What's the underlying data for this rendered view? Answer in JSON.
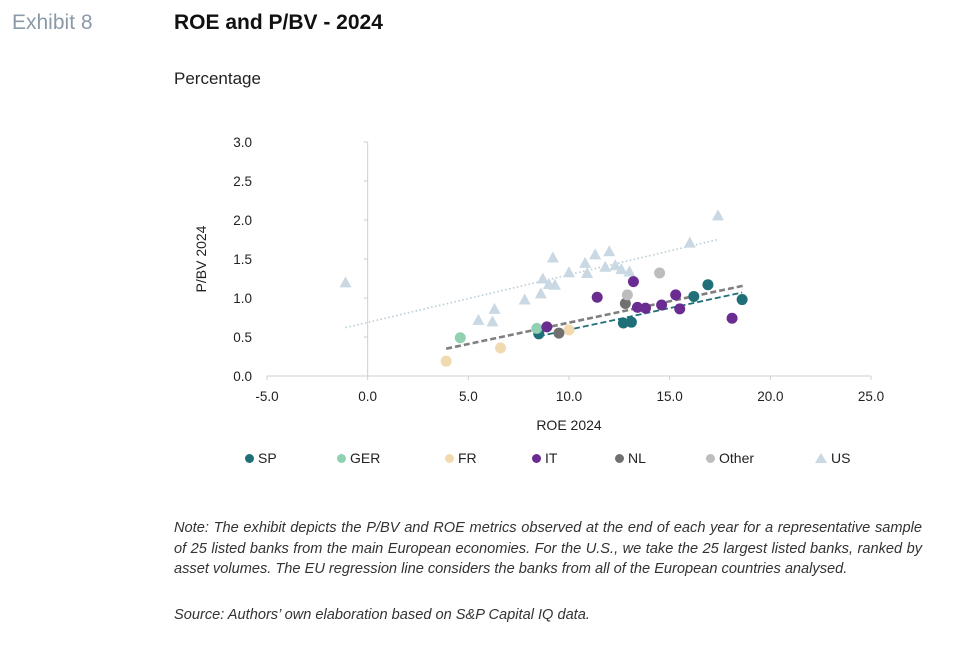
{
  "header": {
    "exhibit": "Exhibit 8",
    "title": "ROE and P/BV - 2024",
    "subtitle": "Percentage"
  },
  "footer": {
    "note": "Note: The exhibit depicts the P/BV and ROE metrics observed at the end of each year for a representative sample of 25 listed banks from the main European economies. For the U.S., we take the 25 largest listed banks, ranked by asset volumes. The EU regression line considers the banks from all of the European countries analysed.",
    "source": "Source: Authors’ own elaboration based on S&P Capital IQ data."
  },
  "chart_data": {
    "type": "scatter",
    "xlabel": "ROE 2024",
    "ylabel": "P/BV 2024",
    "xlim": [
      -5,
      25
    ],
    "ylim": [
      0,
      3
    ],
    "xticks": [
      "-5.0",
      "0.0",
      "5.0",
      "10.0",
      "15.0",
      "20.0",
      "25.0"
    ],
    "yticks": [
      "0.0",
      "0.5",
      "1.0",
      "1.5",
      "2.0",
      "2.5",
      "3.0"
    ],
    "legend_position": "bottom",
    "series": [
      {
        "name": "SP",
        "marker": "circle",
        "color": "#1e6f78",
        "points": [
          [
            8.5,
            0.54
          ],
          [
            12.7,
            0.68
          ],
          [
            13.1,
            0.69
          ],
          [
            16.2,
            1.02
          ],
          [
            16.9,
            1.17
          ],
          [
            18.6,
            0.98
          ]
        ]
      },
      {
        "name": "GER",
        "marker": "circle",
        "color": "#8fd1b0",
        "points": [
          [
            4.6,
            0.49
          ],
          [
            8.4,
            0.61
          ]
        ]
      },
      {
        "name": "FR",
        "marker": "circle",
        "color": "#f1dab0",
        "points": [
          [
            3.9,
            0.19
          ],
          [
            6.6,
            0.36
          ],
          [
            10.0,
            0.59
          ]
        ]
      },
      {
        "name": "IT",
        "marker": "circle",
        "color": "#6a2c91",
        "points": [
          [
            8.9,
            0.63
          ],
          [
            11.4,
            1.01
          ],
          [
            13.2,
            1.21
          ],
          [
            13.4,
            0.88
          ],
          [
            13.8,
            0.87
          ],
          [
            14.6,
            0.91
          ],
          [
            15.3,
            1.04
          ],
          [
            15.5,
            0.86
          ],
          [
            18.1,
            0.74
          ]
        ]
      },
      {
        "name": "NL",
        "marker": "circle",
        "color": "#707070",
        "points": [
          [
            9.5,
            0.55
          ],
          [
            12.8,
            0.93
          ]
        ]
      },
      {
        "name": "Other",
        "marker": "circle",
        "color": "#bdbdbd",
        "points": [
          [
            12.9,
            1.04
          ],
          [
            14.5,
            1.32
          ]
        ]
      },
      {
        "name": "US",
        "marker": "triangle",
        "color": "#c9d8e2",
        "points": [
          [
            -1.1,
            1.2
          ],
          [
            5.5,
            0.72
          ],
          [
            6.2,
            0.7
          ],
          [
            6.3,
            0.86
          ],
          [
            7.8,
            0.98
          ],
          [
            8.6,
            1.06
          ],
          [
            8.7,
            1.25
          ],
          [
            9.0,
            1.18
          ],
          [
            9.2,
            1.52
          ],
          [
            9.3,
            1.17
          ],
          [
            10.0,
            1.33
          ],
          [
            10.8,
            1.45
          ],
          [
            10.9,
            1.32
          ],
          [
            11.3,
            1.56
          ],
          [
            11.8,
            1.4
          ],
          [
            12.0,
            1.6
          ],
          [
            12.3,
            1.42
          ],
          [
            12.6,
            1.37
          ],
          [
            13.0,
            1.34
          ],
          [
            16.0,
            1.71
          ],
          [
            17.4,
            2.06
          ]
        ]
      }
    ],
    "trendlines": [
      {
        "series": "EU",
        "style": "dashed",
        "color": "#7f7f7f",
        "from": [
          3.9,
          0.35
        ],
        "to": [
          18.7,
          1.16
        ]
      },
      {
        "series": "SP",
        "style": "dashed",
        "color": "#1e6f78",
        "from": [
          8.5,
          0.51
        ],
        "to": [
          18.6,
          1.07
        ]
      },
      {
        "series": "US",
        "style": "dotted",
        "color": "#b6ccd7",
        "from": [
          -1.1,
          0.62
        ],
        "to": [
          17.4,
          1.75
        ]
      }
    ]
  }
}
